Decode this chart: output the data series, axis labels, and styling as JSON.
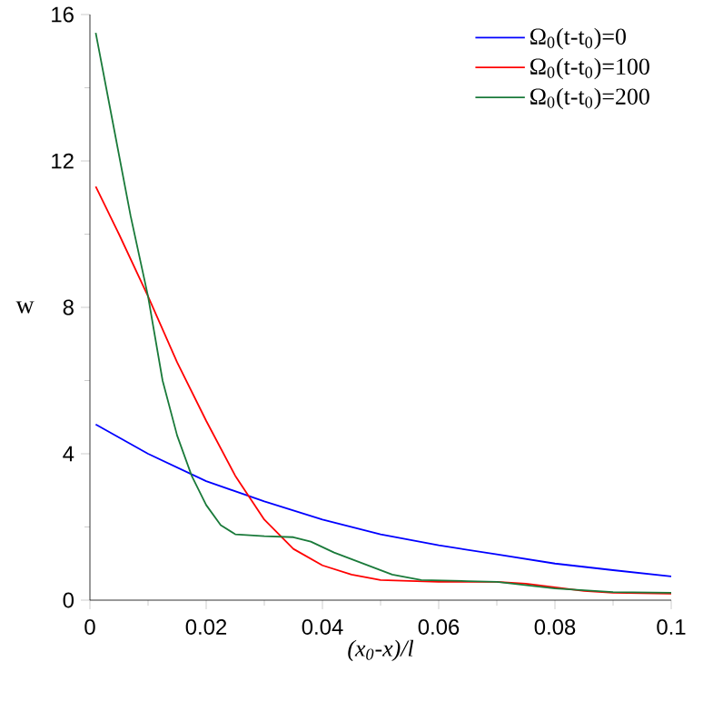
{
  "chart_data": {
    "type": "line",
    "xlabel": "(x$_{0}$-x)/l",
    "ylabel": "w",
    "xlim": [
      0,
      0.1
    ],
    "ylim": [
      0,
      16
    ],
    "xticks": [
      0,
      0.02,
      0.04,
      0.06,
      0.08,
      0.1
    ],
    "yticks": [
      0,
      4,
      8,
      12,
      16
    ],
    "legend": "top right",
    "series": [
      {
        "name": "Ω$_{0}$(t-t$_{0}$)=0",
        "color": "#0000ff",
        "x": [
          0.001,
          0.01,
          0.02,
          0.03,
          0.04,
          0.05,
          0.06,
          0.07,
          0.08,
          0.09,
          0.1
        ],
        "values": [
          4.8,
          4.0,
          3.25,
          2.7,
          2.2,
          1.8,
          1.5,
          1.25,
          1.0,
          0.82,
          0.65
        ]
      },
      {
        "name": "Ω$_{0}$(t-t$_{0}$)=100",
        "color": "#ff0000",
        "x": [
          0.001,
          0.005,
          0.01,
          0.015,
          0.02,
          0.025,
          0.03,
          0.035,
          0.04,
          0.045,
          0.05,
          0.06,
          0.07,
          0.075,
          0.08,
          0.085,
          0.09,
          0.1
        ],
        "values": [
          11.3,
          10.0,
          8.3,
          6.5,
          4.9,
          3.4,
          2.2,
          1.4,
          0.95,
          0.7,
          0.55,
          0.5,
          0.5,
          0.45,
          0.35,
          0.25,
          0.2,
          0.18
        ]
      },
      {
        "name": "Ω$_{0}$(t-t$_{0}$)=200",
        "color": "#1a7a3a",
        "x": [
          0.001,
          0.004,
          0.007,
          0.01,
          0.0125,
          0.015,
          0.0175,
          0.02,
          0.0225,
          0.025,
          0.03,
          0.035,
          0.038,
          0.042,
          0.047,
          0.052,
          0.057,
          0.065,
          0.07,
          0.08,
          0.09,
          0.1
        ],
        "values": [
          15.5,
          13.0,
          10.5,
          8.3,
          6.0,
          4.5,
          3.4,
          2.6,
          2.05,
          1.8,
          1.75,
          1.72,
          1.6,
          1.3,
          1.0,
          0.7,
          0.55,
          0.52,
          0.5,
          0.32,
          0.22,
          0.2
        ]
      }
    ]
  }
}
